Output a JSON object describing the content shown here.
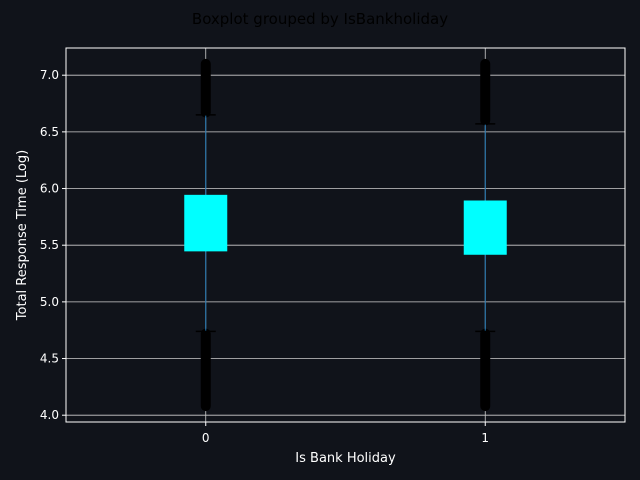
{
  "chart_data": {
    "type": "box",
    "title": "Boxplot grouped by IsBankholiday",
    "xlabel": "Is Bank Holiday",
    "ylabel": "Total Response Time (Log)",
    "categories": [
      "0",
      "1"
    ],
    "ylim": [
      3.94,
      7.24
    ],
    "yticks": [
      "4.0",
      "4.5",
      "5.0",
      "5.5",
      "6.0",
      "6.5",
      "7.0"
    ],
    "grid": true,
    "boxes": [
      {
        "category": "0",
        "whisker_low": 4.74,
        "q1": 5.45,
        "median": 5.69,
        "q3": 5.94,
        "whisker_high": 6.65,
        "outliers_low": [
          4.08,
          4.72
        ],
        "outliers_high": [
          6.67,
          7.1
        ]
      },
      {
        "category": "1",
        "whisker_low": 4.74,
        "q1": 5.42,
        "median": 5.64,
        "q3": 5.89,
        "whisker_high": 6.57,
        "outliers_low": [
          4.08,
          4.72
        ],
        "outliers_high": [
          6.6,
          7.1
        ]
      }
    ],
    "colors": {
      "background": "#10131a",
      "axes_background": "#10131a",
      "box_fill": "#00ffff",
      "whisker": "#1f77b4",
      "outlier": "#000000",
      "grid": "#cfcfcf",
      "spine": "#ffffff",
      "text": "#ffffff",
      "suptitle": "#000000"
    }
  }
}
